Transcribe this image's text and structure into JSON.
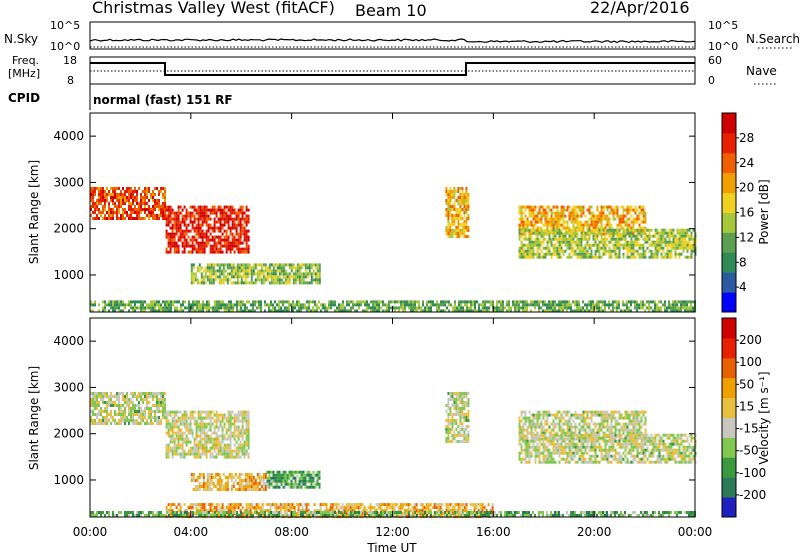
{
  "header": {
    "station": "Christmas Valley West (fitACF)",
    "beam": "Beam 10",
    "date": "22/Apr/2016"
  },
  "sky_panel": {
    "left_label": "N.Sky",
    "left_ticks": [
      "10^5",
      "10^0"
    ],
    "right_label": "N.Search",
    "right_ticks": [
      "10^5",
      "10^0"
    ]
  },
  "freq_panel": {
    "left_label_1": "Freq.",
    "left_label_2": "[MHz]",
    "left_ticks": [
      "18",
      "8"
    ],
    "right_label": "Nave",
    "right_ticks": [
      "60",
      "0"
    ],
    "cpid_label": "CPID",
    "cpid_value": "normal (fast) 151 RF"
  },
  "colors": {
    "power": [
      "#0000ff",
      "#2c5aa0",
      "#2e8b57",
      "#5aa050",
      "#a8c83c",
      "#f0d020",
      "#f0a000",
      "#f06000",
      "#e82000",
      "#d00000"
    ],
    "velocity": [
      "#2020c0",
      "#2a7a5a",
      "#3a9a40",
      "#80c850",
      "#c8c8c0",
      "#e8c040",
      "#f0a000",
      "#e86000",
      "#e82000",
      "#d00000"
    ]
  },
  "chart_data": [
    {
      "type": "heatmap",
      "name": "power",
      "ylabel": "Slant Range [km]",
      "y_ticks": [
        "4000",
        "3000",
        "2000",
        "1000"
      ],
      "colorbar_label": "Power [dB]",
      "colorbar_ticks": [
        "28",
        "24",
        "20",
        "16",
        "12",
        "8",
        "4"
      ],
      "ylim": [
        200,
        4500
      ],
      "xlim": [
        0,
        24
      ],
      "regions": [
        {
          "t0": 0.0,
          "t1": 3.0,
          "r0": 2200,
          "r1": 2900,
          "level": 0.8
        },
        {
          "t0": 3.0,
          "t1": 6.3,
          "r0": 1500,
          "r1": 2500,
          "level": 0.88
        },
        {
          "t0": 4.0,
          "t1": 9.1,
          "r0": 850,
          "r1": 1250,
          "level": 0.42
        },
        {
          "t0": 14.1,
          "t1": 15.0,
          "r0": 1800,
          "r1": 2900,
          "level": 0.62
        },
        {
          "t0": 17.0,
          "t1": 22.0,
          "r0": 1900,
          "r1": 2500,
          "level": 0.62
        },
        {
          "t0": 17.0,
          "t1": 24.0,
          "r0": 1400,
          "r1": 2000,
          "level": 0.45
        },
        {
          "t0": 0.0,
          "t1": 24.0,
          "r0": 230,
          "r1": 450,
          "level": 0.35
        }
      ]
    },
    {
      "type": "heatmap",
      "name": "velocity",
      "ylabel": "Slant Range [km]",
      "y_ticks": [
        "4000",
        "3000",
        "2000",
        "1000"
      ],
      "colorbar_label": "Velocity [m s⁻¹]",
      "colorbar_ticks": [
        "200",
        "100",
        "50",
        "15",
        "-15",
        "-50",
        "-100",
        "-200"
      ],
      "ylim": [
        200,
        4500
      ],
      "xlim": [
        0,
        24
      ],
      "x_ticks": [
        "00:00",
        "04:00",
        "08:00",
        "12:00",
        "16:00",
        "20:00",
        "00:00"
      ],
      "xlabel": "Time UT",
      "regions": [
        {
          "t0": 0.0,
          "t1": 3.0,
          "r0": 2200,
          "r1": 2900,
          "level": 0.44
        },
        {
          "t0": 3.0,
          "t1": 6.3,
          "r0": 1500,
          "r1": 2500,
          "level": 0.46
        },
        {
          "t0": 4.0,
          "t1": 7.0,
          "r0": 800,
          "r1": 1150,
          "level": 0.6
        },
        {
          "t0": 7.0,
          "t1": 9.1,
          "r0": 850,
          "r1": 1200,
          "level": 0.28
        },
        {
          "t0": 14.1,
          "t1": 15.0,
          "r0": 1800,
          "r1": 2900,
          "level": 0.44
        },
        {
          "t0": 17.0,
          "t1": 22.0,
          "r0": 1900,
          "r1": 2500,
          "level": 0.44
        },
        {
          "t0": 17.0,
          "t1": 24.0,
          "r0": 1400,
          "r1": 2000,
          "level": 0.44
        },
        {
          "t0": 3.0,
          "t1": 16.0,
          "r0": 230,
          "r1": 500,
          "level": 0.62
        },
        {
          "t0": 0.0,
          "t1": 24.0,
          "r0": 230,
          "r1": 330,
          "level": 0.3
        }
      ]
    }
  ]
}
